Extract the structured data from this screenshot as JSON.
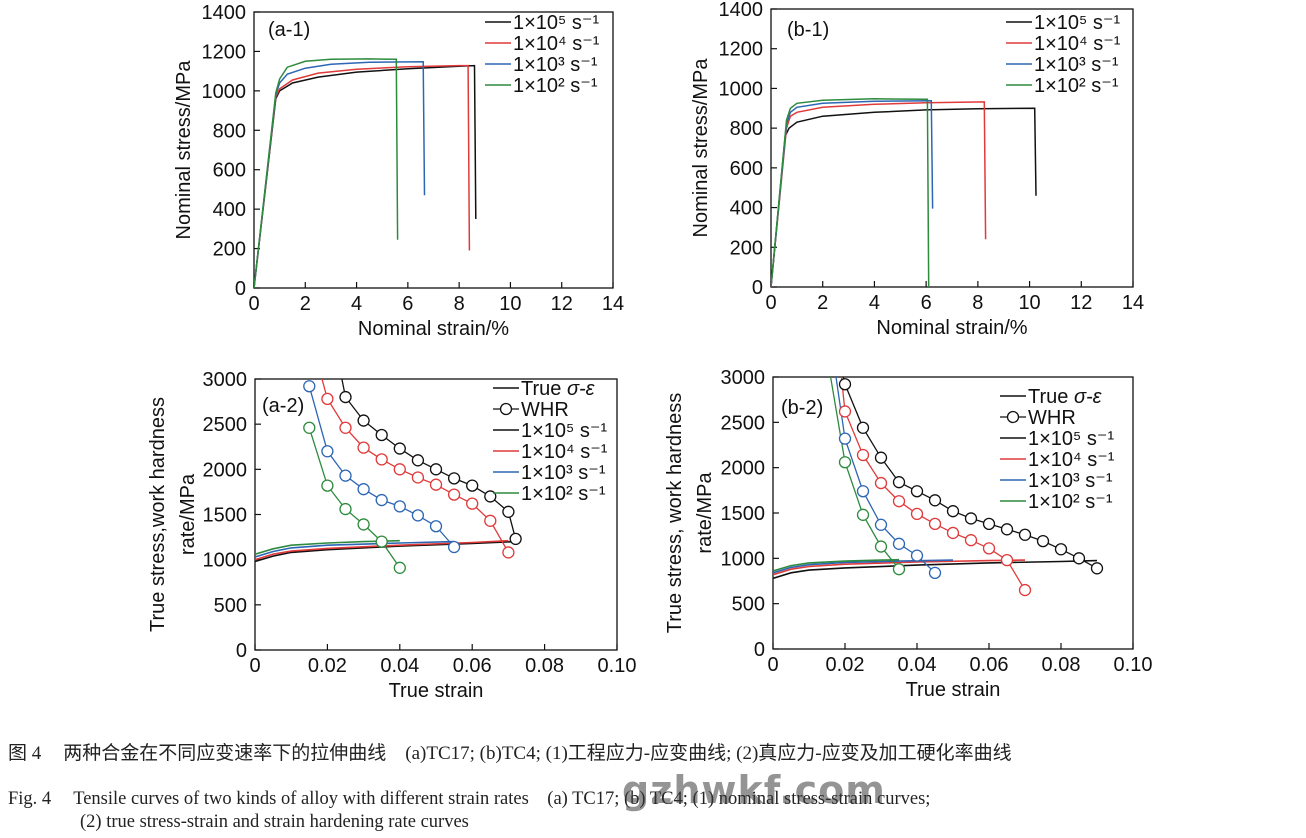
{
  "chart_data": [
    {
      "id": "a1",
      "type": "line",
      "panel_label": "(a-1)",
      "xlabel": "Nominal strain/%",
      "ylabel": "Nominal stress/MPa",
      "xlim": [
        0,
        14
      ],
      "ylim": [
        0,
        1400
      ],
      "xticks": [
        0,
        2,
        4,
        6,
        8,
        10,
        12,
        14
      ],
      "yticks": [
        0,
        200,
        400,
        600,
        800,
        1000,
        1200,
        1400
      ],
      "legend_position": "top-right",
      "series": [
        {
          "name": "1×10⁵ s⁻¹",
          "color": "#111111",
          "points": [
            [
              0,
              0
            ],
            [
              0.85,
              960
            ],
            [
              1.0,
              1000
            ],
            [
              1.5,
              1040
            ],
            [
              2.5,
              1070
            ],
            [
              4,
              1095
            ],
            [
              6,
              1112
            ],
            [
              8,
              1125
            ],
            [
              8.6,
              1128
            ],
            [
              8.65,
              350
            ]
          ]
        },
        {
          "name": "1×10⁴ s⁻¹",
          "color": "#e03a3a",
          "points": [
            [
              0,
              0
            ],
            [
              0.85,
              970
            ],
            [
              1.0,
              1010
            ],
            [
              1.5,
              1055
            ],
            [
              2.5,
              1090
            ],
            [
              4,
              1110
            ],
            [
              6,
              1122
            ],
            [
              8,
              1128
            ],
            [
              8.35,
              1128
            ],
            [
              8.4,
              190
            ]
          ]
        },
        {
          "name": "1×10³ s⁻¹",
          "color": "#2d66b4",
          "points": [
            [
              0,
              0
            ],
            [
              0.85,
              980
            ],
            [
              1.0,
              1040
            ],
            [
              1.3,
              1085
            ],
            [
              2,
              1115
            ],
            [
              3,
              1135
            ],
            [
              4.5,
              1145
            ],
            [
              6.6,
              1148
            ],
            [
              6.65,
              470
            ]
          ]
        },
        {
          "name": "1×10² s⁻¹",
          "color": "#2e8b3e",
          "points": [
            [
              0,
              0
            ],
            [
              0.85,
              990
            ],
            [
              1.0,
              1060
            ],
            [
              1.3,
              1120
            ],
            [
              2,
              1150
            ],
            [
              3,
              1160
            ],
            [
              4.5,
              1162
            ],
            [
              5.55,
              1160
            ],
            [
              5.6,
              245
            ]
          ]
        }
      ]
    },
    {
      "id": "b1",
      "type": "line",
      "panel_label": "(b-1)",
      "xlabel": "Nominal strain/%",
      "ylabel": "Nominal stress/MPa",
      "xlim": [
        0,
        14
      ],
      "ylim": [
        0,
        1400
      ],
      "xticks": [
        0,
        2,
        4,
        6,
        8,
        10,
        12,
        14
      ],
      "yticks": [
        0,
        200,
        400,
        600,
        800,
        1000,
        1200,
        1400
      ],
      "legend_position": "top-right",
      "series": [
        {
          "name": "1×10⁵ s⁻¹",
          "color": "#111111",
          "points": [
            [
              0,
              0
            ],
            [
              0.55,
              760
            ],
            [
              0.7,
              800
            ],
            [
              1,
              830
            ],
            [
              2,
              860
            ],
            [
              4,
              880
            ],
            [
              6,
              892
            ],
            [
              8,
              898
            ],
            [
              10.2,
              900
            ],
            [
              10.25,
              460
            ]
          ]
        },
        {
          "name": "1×10⁴ s⁻¹",
          "color": "#e03a3a",
          "points": [
            [
              0,
              0
            ],
            [
              0.6,
              800
            ],
            [
              0.75,
              860
            ],
            [
              1,
              880
            ],
            [
              2,
              905
            ],
            [
              4,
              920
            ],
            [
              6,
              928
            ],
            [
              8.25,
              932
            ],
            [
              8.3,
              240
            ]
          ]
        },
        {
          "name": "1×10³ s⁻¹",
          "color": "#2d66b4",
          "points": [
            [
              0,
              0
            ],
            [
              0.6,
              820
            ],
            [
              0.75,
              880
            ],
            [
              1,
              905
            ],
            [
              2,
              925
            ],
            [
              4,
              935
            ],
            [
              6.2,
              938
            ],
            [
              6.25,
              395
            ]
          ]
        },
        {
          "name": "1×10² s⁻¹",
          "color": "#2e8b3e",
          "points": [
            [
              0,
              0
            ],
            [
              0.6,
              840
            ],
            [
              0.75,
              900
            ],
            [
              1,
              925
            ],
            [
              2,
              940
            ],
            [
              4,
              948
            ],
            [
              6.05,
              945
            ],
            [
              6.1,
              0
            ]
          ]
        }
      ]
    },
    {
      "id": "a2",
      "type": "line",
      "panel_label": "(a-2)",
      "xlabel": "True strain",
      "ylabel_lines": [
        "True stress,work hardness",
        "rate/MPa"
      ],
      "xlim": [
        0,
        0.1
      ],
      "ylim": [
        0,
        3000
      ],
      "xticks": [
        0,
        0.02,
        0.04,
        0.06,
        0.08,
        0.1
      ],
      "xtick_labels": [
        "0",
        "0.02",
        "0.04",
        "0.06",
        "0.08",
        "0.10"
      ],
      "yticks": [
        0,
        500,
        1000,
        1500,
        2000,
        2500,
        3000
      ],
      "legend_position": "top-right",
      "legend_style": {
        "true_label": "True σ-ε",
        "whr_label": "WHR"
      },
      "series": [
        {
          "name": "1×10⁵ s⁻¹",
          "color": "#111111",
          "stress": [
            [
              0.0,
              980
            ],
            [
              0.005,
              1040
            ],
            [
              0.01,
              1080
            ],
            [
              0.02,
              1110
            ],
            [
              0.04,
              1150
            ],
            [
              0.06,
              1180
            ],
            [
              0.072,
              1200
            ]
          ],
          "whr": [
            [
              0.024,
              3000
            ],
            [
              0.025,
              2800
            ],
            [
              0.03,
              2540
            ],
            [
              0.035,
              2380
            ],
            [
              0.04,
              2230
            ],
            [
              0.045,
              2100
            ],
            [
              0.05,
              2000
            ],
            [
              0.055,
              1900
            ],
            [
              0.06,
              1820
            ],
            [
              0.065,
              1700
            ],
            [
              0.07,
              1530
            ],
            [
              0.072,
              1230
            ]
          ]
        },
        {
          "name": "1×10⁴ s⁻¹",
          "color": "#e03a3a",
          "stress": [
            [
              0.0,
              1000
            ],
            [
              0.005,
              1060
            ],
            [
              0.01,
              1095
            ],
            [
              0.02,
              1125
            ],
            [
              0.04,
              1160
            ],
            [
              0.06,
              1190
            ],
            [
              0.07,
              1210
            ]
          ],
          "whr": [
            [
              0.0185,
              3000
            ],
            [
              0.02,
              2780
            ],
            [
              0.025,
              2460
            ],
            [
              0.03,
              2240
            ],
            [
              0.035,
              2110
            ],
            [
              0.04,
              2000
            ],
            [
              0.045,
              1910
            ],
            [
              0.05,
              1830
            ],
            [
              0.055,
              1720
            ],
            [
              0.06,
              1620
            ],
            [
              0.065,
              1430
            ],
            [
              0.07,
              1080
            ]
          ]
        },
        {
          "name": "1×10³ s⁻¹",
          "color": "#2d66b4",
          "stress": [
            [
              0.0,
              1030
            ],
            [
              0.005,
              1090
            ],
            [
              0.01,
              1130
            ],
            [
              0.02,
              1160
            ],
            [
              0.04,
              1185
            ],
            [
              0.055,
              1200
            ]
          ],
          "whr": [
            [
              0.015,
              2920
            ],
            [
              0.02,
              2200
            ],
            [
              0.025,
              1930
            ],
            [
              0.03,
              1780
            ],
            [
              0.035,
              1660
            ],
            [
              0.04,
              1590
            ],
            [
              0.045,
              1490
            ],
            [
              0.05,
              1370
            ],
            [
              0.055,
              1140
            ]
          ]
        },
        {
          "name": "1×10² s⁻¹",
          "color": "#2e8b3e",
          "stress": [
            [
              0.0,
              1060
            ],
            [
              0.005,
              1120
            ],
            [
              0.01,
              1160
            ],
            [
              0.02,
              1185
            ],
            [
              0.03,
              1200
            ],
            [
              0.04,
              1210
            ]
          ],
          "whr": [
            [
              0.015,
              2460
            ],
            [
              0.02,
              1820
            ],
            [
              0.025,
              1560
            ],
            [
              0.03,
              1390
            ],
            [
              0.035,
              1200
            ],
            [
              0.04,
              910
            ]
          ]
        }
      ]
    },
    {
      "id": "b2",
      "type": "line",
      "panel_label": "(b-2)",
      "xlabel": "True strain",
      "ylabel_lines": [
        "True stress, work hardness",
        "rate/MPa"
      ],
      "xlim": [
        0,
        0.1
      ],
      "ylim": [
        0,
        3000
      ],
      "xticks": [
        0,
        0.02,
        0.04,
        0.06,
        0.08,
        0.1
      ],
      "xtick_labels": [
        "0",
        "0.02",
        "0.04",
        "0.06",
        "0.08",
        "0.10"
      ],
      "yticks": [
        0,
        500,
        1000,
        1500,
        2000,
        2500,
        3000
      ],
      "legend_position": "top-right",
      "legend_style": {
        "true_label": "True σ-ε",
        "whr_label": "WHR"
      },
      "series": [
        {
          "name": "1×10⁵ s⁻¹",
          "color": "#111111",
          "stress": [
            [
              0.0,
              780
            ],
            [
              0.005,
              840
            ],
            [
              0.01,
              870
            ],
            [
              0.02,
              895
            ],
            [
              0.04,
              925
            ],
            [
              0.06,
              950
            ],
            [
              0.08,
              965
            ],
            [
              0.09,
              975
            ]
          ],
          "whr": [
            [
              0.0195,
              3000
            ],
            [
              0.02,
              2920
            ],
            [
              0.025,
              2440
            ],
            [
              0.03,
              2110
            ],
            [
              0.035,
              1840
            ],
            [
              0.04,
              1740
            ],
            [
              0.045,
              1640
            ],
            [
              0.05,
              1520
            ],
            [
              0.055,
              1440
            ],
            [
              0.06,
              1380
            ],
            [
              0.065,
              1320
            ],
            [
              0.07,
              1260
            ],
            [
              0.075,
              1190
            ],
            [
              0.08,
              1100
            ],
            [
              0.085,
              1000
            ],
            [
              0.09,
              890
            ]
          ]
        },
        {
          "name": "1×10⁴ s⁻¹",
          "color": "#e03a3a",
          "stress": [
            [
              0.0,
              820
            ],
            [
              0.005,
              880
            ],
            [
              0.01,
              910
            ],
            [
              0.02,
              935
            ],
            [
              0.04,
              960
            ],
            [
              0.06,
              975
            ],
            [
              0.07,
              980
            ]
          ],
          "whr": [
            [
              0.019,
              3000
            ],
            [
              0.02,
              2620
            ],
            [
              0.025,
              2140
            ],
            [
              0.03,
              1830
            ],
            [
              0.035,
              1630
            ],
            [
              0.04,
              1490
            ],
            [
              0.045,
              1380
            ],
            [
              0.05,
              1280
            ],
            [
              0.055,
              1200
            ],
            [
              0.06,
              1110
            ],
            [
              0.065,
              980
            ],
            [
              0.07,
              650
            ]
          ]
        },
        {
          "name": "1×10³ s⁻¹",
          "color": "#2d66b4",
          "stress": [
            [
              0.0,
              840
            ],
            [
              0.005,
              900
            ],
            [
              0.01,
              930
            ],
            [
              0.02,
              955
            ],
            [
              0.035,
              970
            ],
            [
              0.05,
              980
            ]
          ],
          "whr": [
            [
              0.0175,
              3000
            ],
            [
              0.02,
              2320
            ],
            [
              0.025,
              1740
            ],
            [
              0.03,
              1370
            ],
            [
              0.035,
              1160
            ],
            [
              0.04,
              1030
            ],
            [
              0.045,
              840
            ]
          ]
        },
        {
          "name": "1×10² s⁻¹",
          "color": "#2e8b3e",
          "stress": [
            [
              0.0,
              860
            ],
            [
              0.005,
              920
            ],
            [
              0.01,
              950
            ],
            [
              0.02,
              970
            ],
            [
              0.03,
              980
            ],
            [
              0.035,
              985
            ]
          ],
          "whr": [
            [
              0.016,
              3000
            ],
            [
              0.02,
              2060
            ],
            [
              0.025,
              1480
            ],
            [
              0.03,
              1130
            ],
            [
              0.035,
              880
            ]
          ]
        }
      ]
    }
  ],
  "caption": {
    "cn_label": "图 4",
    "cn_text": "两种合金在不同应变速率下的拉伸曲线　(a)TC17; (b)TC4; (1)工程应力-应变曲线; (2)真应力-应变及加工硬化率曲线",
    "en_label": "Fig. 4",
    "en_text_line1": "Tensile curves of two kinds of alloy with different strain rates　(a) TC17; (b) TC4; (1) nominal stress-strain curves;",
    "en_text_line2": "(2) true stress-strain and strain hardening rate curves"
  },
  "watermark": "gzhwkf.com"
}
